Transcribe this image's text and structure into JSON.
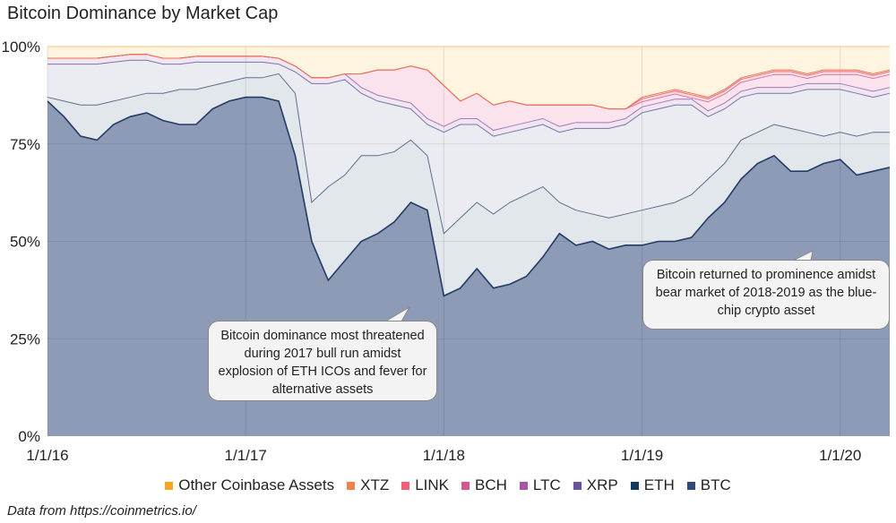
{
  "chart_data": {
    "type": "area",
    "stacked": true,
    "title": "Bitcoin Dominance by Market Cap",
    "ylim": [
      0,
      100
    ],
    "y_ticks": [
      "0%",
      "25%",
      "50%",
      "75%",
      "100%"
    ],
    "x_ticks": [
      "1/1/16",
      "1/1/17",
      "1/1/18",
      "1/1/19",
      "1/1/20"
    ],
    "grid": true,
    "legend_position": "bottom",
    "x": [
      "2016-01",
      "2016-02",
      "2016-03",
      "2016-04",
      "2016-05",
      "2016-06",
      "2016-07",
      "2016-08",
      "2016-09",
      "2016-10",
      "2016-11",
      "2016-12",
      "2017-01",
      "2017-02",
      "2017-03",
      "2017-04",
      "2017-05",
      "2017-06",
      "2017-07",
      "2017-08",
      "2017-09",
      "2017-10",
      "2017-11",
      "2017-12",
      "2018-01",
      "2018-02",
      "2018-03",
      "2018-04",
      "2018-05",
      "2018-06",
      "2018-07",
      "2018-08",
      "2018-09",
      "2018-10",
      "2018-11",
      "2018-12",
      "2019-01",
      "2019-02",
      "2019-03",
      "2019-04",
      "2019-05",
      "2019-06",
      "2019-07",
      "2019-08",
      "2019-09",
      "2019-10",
      "2019-11",
      "2019-12",
      "2020-01",
      "2020-02",
      "2020-03",
      "2020-04"
    ],
    "series": [
      {
        "name": "BTC",
        "color": "#2f4a7a",
        "fill": "#8e9bb7",
        "line": "#243b66",
        "values": [
          86,
          82,
          77,
          76,
          80,
          82,
          83,
          81,
          80,
          80,
          84,
          86,
          87,
          87,
          86,
          72,
          50,
          40,
          45,
          50,
          52,
          55,
          60,
          58,
          36,
          38,
          43,
          38,
          39,
          41,
          46,
          52,
          49,
          50,
          48,
          49,
          49,
          50,
          50,
          51,
          56,
          60,
          66,
          70,
          72,
          68,
          68,
          70,
          71,
          67,
          68,
          69
        ]
      },
      {
        "name": "ETH",
        "color": "#123a5c",
        "fill": "#e2e7ec",
        "line": "#5f6f88",
        "values": [
          1,
          4,
          8,
          9,
          6,
          5,
          5,
          7,
          9,
          9,
          6,
          5,
          5,
          5,
          7,
          16,
          10,
          24,
          22,
          22,
          20,
          18,
          16,
          14,
          16,
          18,
          17,
          19,
          21,
          21,
          18,
          8,
          9,
          7,
          8,
          8,
          9,
          9,
          10,
          11,
          10,
          10,
          10,
          8,
          8,
          11,
          10,
          7,
          7,
          10,
          10,
          9
        ]
      },
      {
        "name": "XRP",
        "color": "#6b52a0",
        "fill": "#ebebf2",
        "line": "#7c73a6",
        "values": [
          8.5,
          9.5,
          10.5,
          10.5,
          10,
          9.5,
          8.5,
          7.5,
          6.5,
          7,
          6,
          5,
          4,
          4,
          2.5,
          5.5,
          30.5,
          26.5,
          24.5,
          16,
          14,
          12,
          8,
          8,
          26,
          24,
          20,
          20,
          18,
          17,
          16,
          18,
          21,
          22,
          23,
          23,
          25,
          25,
          25,
          23,
          16,
          14,
          11,
          10,
          8,
          9,
          11,
          12,
          11,
          11,
          9,
          10
        ]
      },
      {
        "name": "LTC",
        "color": "#a656a8",
        "fill": "#efe6f1",
        "line": "#a27ab8",
        "values": [
          1.5,
          1.5,
          1.5,
          1.5,
          1.5,
          1.5,
          1.5,
          1.5,
          1.5,
          1.5,
          1.5,
          1.5,
          1.5,
          1.5,
          1.5,
          1.5,
          1.5,
          1.5,
          1.5,
          1.5,
          1.5,
          1.5,
          1.5,
          1.5,
          1.5,
          1.5,
          1.5,
          1.5,
          1.5,
          1.5,
          1.5,
          1.5,
          1.5,
          1.5,
          1.5,
          1.5,
          1.5,
          1.5,
          1.5,
          1.5,
          1.5,
          1.5,
          1.5,
          1.5,
          1.5,
          1.5,
          1.5,
          1.5,
          1.5,
          1.5,
          1.5,
          1.5
        ]
      },
      {
        "name": "BCH",
        "color": "#d9558f",
        "fill": "#fbe3ee",
        "line": "#d77aa6",
        "values": [
          0,
          0,
          0,
          0,
          0,
          0,
          0,
          0,
          0,
          0,
          0,
          0,
          0,
          0,
          0,
          0,
          0,
          0,
          0,
          3.5,
          6.5,
          7.5,
          9.5,
          12.5,
          10.5,
          4.5,
          6.5,
          6.5,
          6.5,
          4.5,
          3.5,
          5.5,
          4.5,
          4.5,
          3.5,
          2.5,
          1.3,
          1.3,
          1.3,
          0.3,
          2.3,
          2.3,
          2.3,
          2.3,
          3.3,
          3.3,
          1.3,
          2.3,
          2.3,
          3.3,
          3.3,
          3.3
        ]
      },
      {
        "name": "LINK",
        "color": "#f0607a",
        "fill": "#fcdde3",
        "line": "#ee6a78",
        "values": [
          0,
          0,
          0,
          0,
          0,
          0,
          0,
          0,
          0,
          0,
          0,
          0,
          0,
          0,
          0,
          0,
          0,
          0,
          0,
          0,
          0,
          0,
          0,
          0,
          0,
          0,
          0,
          0,
          0,
          0,
          0,
          0,
          0,
          0,
          0,
          0,
          0.8,
          0.8,
          0.8,
          0.8,
          0.8,
          0.8,
          0.8,
          0.8,
          0.8,
          0.8,
          0.8,
          0.8,
          0.8,
          0.8,
          0.8,
          0.8
        ]
      },
      {
        "name": "XTZ",
        "color": "#f0824a",
        "fill": "#fde3d3",
        "line": "#ee6f4f",
        "values": [
          0,
          0,
          0,
          0,
          0,
          0,
          0,
          0,
          0,
          0,
          0,
          0,
          0,
          0,
          0,
          0,
          0,
          0,
          0,
          0,
          0,
          0,
          0,
          0,
          0,
          0,
          0,
          0,
          0,
          0,
          0,
          0,
          0,
          0,
          0,
          0,
          0.4,
          0.4,
          0.4,
          0.4,
          0.4,
          0.4,
          0.4,
          0.4,
          0.4,
          0.4,
          0.4,
          0.4,
          0.4,
          0.4,
          0.4,
          0.4
        ]
      },
      {
        "name": "Other Coinbase Assets",
        "color": "#f5a623",
        "fill": "#fff4df",
        "line": "#f3c678",
        "values": [
          3,
          3,
          3,
          3,
          2.5,
          2,
          2,
          3,
          3,
          2.5,
          2.5,
          2.5,
          2.5,
          2.5,
          3,
          5,
          8,
          8,
          7,
          7,
          6,
          6,
          5,
          6,
          10,
          14,
          12,
          15,
          14,
          15,
          15,
          15,
          15,
          15,
          16,
          16,
          13,
          12,
          11,
          12,
          13,
          11,
          8,
          7,
          6,
          6,
          7,
          6,
          6,
          6,
          7,
          6
        ]
      }
    ],
    "legend_order": [
      "Other Coinbase Assets",
      "XTZ",
      "LINK",
      "BCH",
      "LTC",
      "XRP",
      "ETH",
      "BTC"
    ],
    "annotations": [
      "Bitcoin dominance most threatened during 2017 bull run amidst explosion of ETH ICOs and fever for alternative assets",
      "Bitcoin returned to prominence amidst bear market of 2018-2019 as the blue-chip crypto asset"
    ]
  },
  "footer": "Data from https://coinmetrics.io/"
}
